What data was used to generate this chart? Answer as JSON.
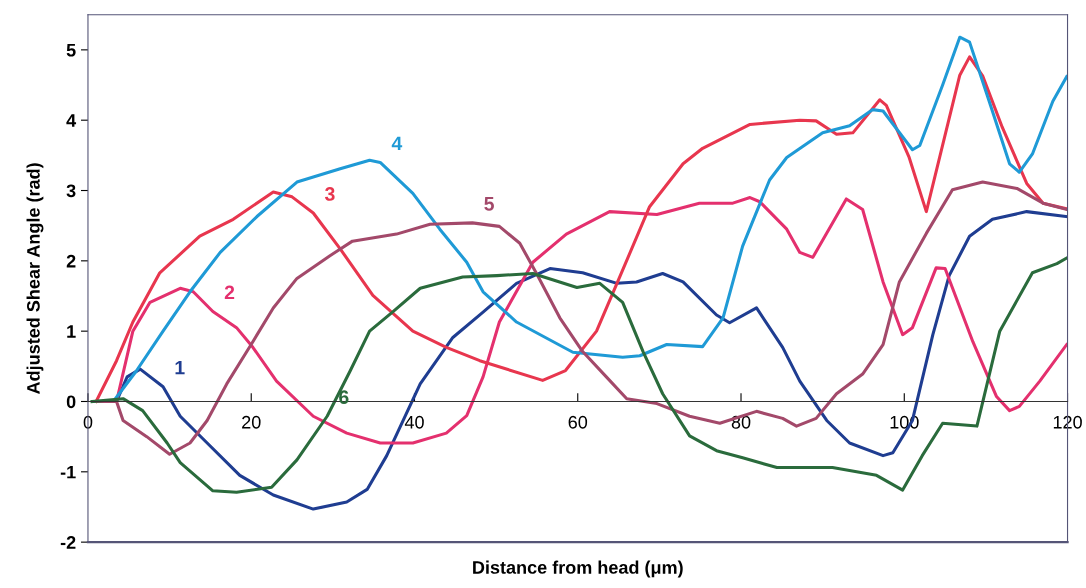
{
  "chart_data": {
    "type": "line",
    "xlabel": "Distance from head (μm)",
    "ylabel": "Adjusted Shear Angle (rad)",
    "xlim": [
      0,
      120
    ],
    "ylim": [
      -2,
      5.5
    ],
    "xticks": [
      0,
      20,
      40,
      60,
      80,
      100,
      120
    ],
    "yticks": [
      -2,
      -1,
      0,
      1,
      2,
      3,
      4,
      5
    ],
    "grid": false,
    "marker": "none",
    "line_style": "solid",
    "series": [
      {
        "color": "#1f3d91",
        "x": [
          1,
          3.5,
          4.8,
          6.4,
          9.2,
          11.3,
          14.6,
          18.6,
          22.7,
          27.6,
          31.7,
          34.2,
          36.6,
          40.7,
          44.7,
          48.4,
          52.5,
          56.6,
          60.6,
          64.8,
          67.2,
          70.4,
          72.9,
          77,
          78.6,
          81.9,
          85.1,
          87.2,
          90.5,
          93.3,
          97.4,
          98.6,
          101,
          103.5,
          105.5,
          108,
          110.8,
          115,
          119.9
        ],
        "values": [
          0,
          0,
          0.35,
          0.46,
          0.21,
          -0.21,
          -0.59,
          -1.05,
          -1.33,
          -1.53,
          -1.43,
          -1.25,
          -0.77,
          0.25,
          0.91,
          1.27,
          1.68,
          1.89,
          1.83,
          1.68,
          1.7,
          1.82,
          1.7,
          1.23,
          1.12,
          1.33,
          0.77,
          0.29,
          -0.27,
          -0.59,
          -0.77,
          -0.73,
          -0.27,
          0.95,
          1.79,
          2.35,
          2.59,
          2.7,
          2.63
        ]
      },
      {
        "color": "#e4306e",
        "x": [
          1,
          3.5,
          5.5,
          7.6,
          11.3,
          12.9,
          15.3,
          18.2,
          20.2,
          23.1,
          27.6,
          31.7,
          35.8,
          39.8,
          43.9,
          46.4,
          48.4,
          50.4,
          54.5,
          58.6,
          63.9,
          69.7,
          74.9,
          79,
          81.1,
          82.3,
          85.6,
          87.2,
          88.8,
          92.9,
          94.9,
          97.4,
          99.8,
          101,
          103.9,
          105,
          108.4,
          111.3,
          112.9,
          114.1,
          116.6,
          119.9
        ],
        "values": [
          0,
          0,
          1.0,
          1.41,
          1.61,
          1.56,
          1.28,
          1.05,
          0.77,
          0.29,
          -0.21,
          -0.45,
          -0.59,
          -0.59,
          -0.45,
          -0.2,
          0.35,
          1.13,
          1.98,
          2.38,
          2.7,
          2.66,
          2.82,
          2.82,
          2.9,
          2.84,
          2.45,
          2.12,
          2.05,
          2.88,
          2.73,
          1.7,
          0.95,
          1.05,
          1.9,
          1.89,
          0.85,
          0.07,
          -0.13,
          -0.07,
          0.29,
          0.81
        ]
      },
      {
        "color": "#e8364e",
        "x": [
          1,
          3.5,
          5.5,
          8.8,
          13.7,
          17.8,
          22.7,
          25,
          27.6,
          30.9,
          34.9,
          39.8,
          43.9,
          48,
          55.7,
          58.5,
          62.3,
          64.7,
          68.8,
          72.9,
          75.3,
          81.1,
          87.2,
          89.2,
          91.7,
          93.7,
          97,
          97.8,
          100.6,
          102.7,
          106.8,
          108,
          109.6,
          112,
          115,
          117,
          119.9
        ],
        "values": [
          0,
          0.58,
          1.13,
          1.83,
          2.35,
          2.59,
          2.98,
          2.91,
          2.68,
          2.17,
          1.51,
          1.0,
          0.77,
          0.58,
          0.3,
          0.44,
          1.0,
          1.65,
          2.77,
          3.38,
          3.6,
          3.94,
          4.0,
          3.99,
          3.8,
          3.82,
          4.29,
          4.21,
          3.47,
          2.7,
          4.64,
          4.9,
          4.63,
          3.9,
          3.1,
          2.82,
          2.74
        ]
      },
      {
        "color": "#1f9ad6",
        "x": [
          1,
          3.1,
          5.9,
          9.2,
          12.5,
          16.2,
          20.7,
          25.6,
          30.9,
          34.5,
          35.8,
          39.8,
          43.1,
          46.4,
          48.4,
          52.5,
          59.4,
          65.5,
          67.6,
          70.9,
          75.3,
          77.8,
          80.2,
          83.5,
          85.6,
          90,
          93.3,
          96.1,
          97.4,
          101,
          101.9,
          104.7,
          106.8,
          108,
          110.4,
          112.9,
          114.1,
          115.7,
          118.2,
          119.9
        ],
        "values": [
          0,
          0,
          0.43,
          1.0,
          1.56,
          2.12,
          2.63,
          3.12,
          3.31,
          3.43,
          3.4,
          2.96,
          2.45,
          1.98,
          1.56,
          1.13,
          0.7,
          0.63,
          0.65,
          0.81,
          0.78,
          1.19,
          2.21,
          3.15,
          3.47,
          3.82,
          3.92,
          4.15,
          4.13,
          3.58,
          3.64,
          4.5,
          5.18,
          5.11,
          4.27,
          3.38,
          3.26,
          3.52,
          4.27,
          4.62
        ]
      },
      {
        "color": "#a3496a",
        "x": [
          1,
          3.5,
          4.3,
          7.2,
          10,
          12.5,
          14.6,
          17,
          20.2,
          22.7,
          25.6,
          29.6,
          32.4,
          37.8,
          41.9,
          47.1,
          50.4,
          52.9,
          54.9,
          57.8,
          60.6,
          63.5,
          66,
          69.7,
          73.7,
          77.4,
          81.9,
          85.1,
          86.8,
          89.2,
          91.7,
          94.9,
          97.4,
          99.4,
          102.7,
          105.9,
          109.6,
          113.8,
          117,
          119.9
        ],
        "values": [
          0,
          0,
          -0.27,
          -0.5,
          -0.75,
          -0.59,
          -0.27,
          0.25,
          0.85,
          1.33,
          1.75,
          2.07,
          2.28,
          2.38,
          2.52,
          2.54,
          2.49,
          2.25,
          1.83,
          1.19,
          0.71,
          0.35,
          0.04,
          -0.03,
          -0.21,
          -0.31,
          -0.14,
          -0.24,
          -0.35,
          -0.24,
          0.11,
          0.39,
          0.81,
          1.7,
          2.39,
          3.01,
          3.12,
          3.03,
          2.82,
          2.73
        ]
      },
      {
        "color": "#2a6b3c",
        "x": [
          0.5,
          4.3,
          6.7,
          9.7,
          11.3,
          15.3,
          18.2,
          22.5,
          25.6,
          29.3,
          32.1,
          34.5,
          37.3,
          40.7,
          45.9,
          50.1,
          54.5,
          59.9,
          62.7,
          65.5,
          68,
          70.4,
          73.7,
          77,
          80.2,
          84.4,
          91.2,
          96.6,
          99.8,
          102.2,
          104.7,
          108.9,
          111.7,
          115.7,
          118.7,
          119.9
        ],
        "values": [
          0,
          0.04,
          -0.13,
          -0.59,
          -0.87,
          -1.27,
          -1.29,
          -1.22,
          -0.83,
          -0.21,
          0.43,
          1.0,
          1.27,
          1.61,
          1.77,
          1.79,
          1.82,
          1.62,
          1.68,
          1.41,
          0.71,
          0.11,
          -0.49,
          -0.7,
          -0.8,
          -0.94,
          -0.94,
          -1.05,
          -1.26,
          -0.77,
          -0.31,
          -0.35,
          1.0,
          1.83,
          1.96,
          2.04
        ]
      }
    ],
    "annotations": [
      {
        "text": "1",
        "x": 9.2,
        "y": 0.21
      },
      {
        "text": "2",
        "x": 15.3,
        "y": 1.28
      },
      {
        "text": "3",
        "x": 27.6,
        "y": 2.68
      },
      {
        "text": "4",
        "x": 35.8,
        "y": 3.4
      },
      {
        "text": "5",
        "x": 47.1,
        "y": 2.54
      },
      {
        "text": "6",
        "x": 29.3,
        "y": -0.21
      }
    ]
  }
}
